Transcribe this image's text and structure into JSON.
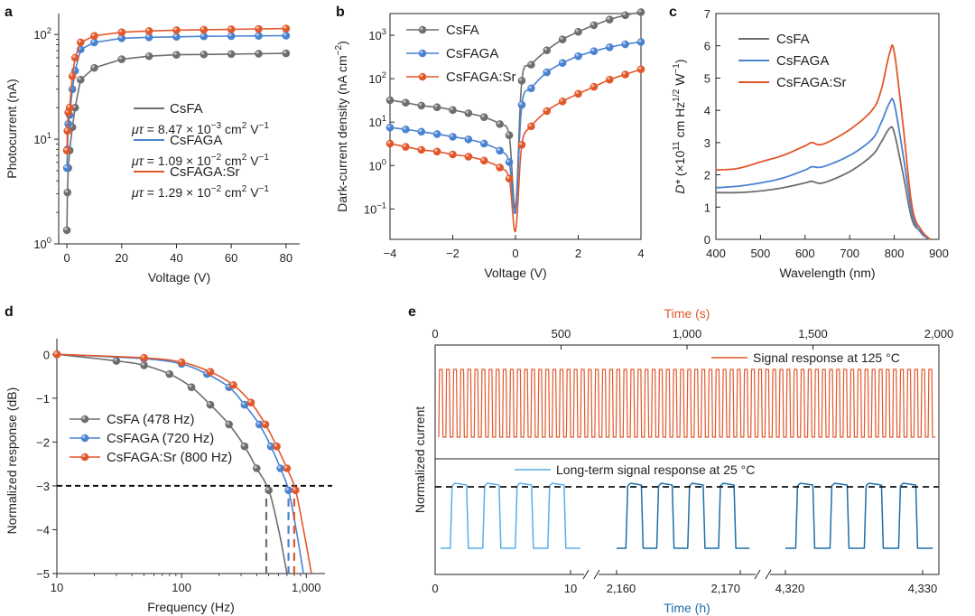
{
  "colors": {
    "csfa": "#6e6e6e",
    "csfaga": "#4a82d0",
    "csfagasr": "#e2572a",
    "signal_hot": "#e2572a",
    "signal_cold_light": "#5aaee8",
    "signal_cold_dark": "#1e6fa8"
  },
  "chart_data": [
    {
      "panel": "a",
      "type": "line",
      "xlabel": "Voltage (V)",
      "ylabel": "Photocurrent (nA)",
      "xlim": [
        -3,
        85
      ],
      "ylim_log10": [
        0,
        2.2
      ],
      "xticks": [
        "0",
        "20",
        "40",
        "60",
        "80"
      ],
      "yticks": [
        {
          "base": "10",
          "exp": "0"
        },
        {
          "base": "10",
          "exp": "1"
        },
        {
          "base": "10",
          "exp": "2"
        }
      ],
      "series": [
        {
          "name": "CsFA",
          "color_key": "csfa",
          "mu_tau": "μτ = 8.47 × 10",
          "mu_exp": "−3",
          "mu_unit": " cm",
          "unit_exp1": "2",
          "unit_tail": " V",
          "unit_exp2": "−1",
          "x": [
            0,
            0.2,
            0.5,
            1,
            2,
            3,
            5,
            10,
            20,
            30,
            40,
            50,
            60,
            70,
            80
          ],
          "y": [
            1.35,
            3.1,
            5.3,
            7.8,
            13,
            20,
            37,
            48,
            58,
            62,
            64,
            64.5,
            65,
            65.5,
            66
          ]
        },
        {
          "name": "CsFAGA",
          "color_key": "csfaga",
          "mu_tau": "μτ = 1.09 × 10",
          "mu_exp": "−2",
          "mu_unit": " cm",
          "unit_exp1": "2",
          "unit_tail": " V",
          "unit_exp2": "−1",
          "x": [
            0,
            0.2,
            0.5,
            1,
            2,
            3,
            5,
            10,
            20,
            30,
            40,
            50,
            60,
            70,
            80
          ],
          "y": [
            5.3,
            8,
            14,
            17,
            30,
            45,
            72,
            84,
            92,
            94,
            95,
            96,
            96.5,
            97,
            97.5
          ]
        },
        {
          "name": "CsFAGA:Sr",
          "color_key": "csfagasr",
          "mu_tau": "μτ = 1.29 × 10",
          "mu_exp": "−2",
          "mu_unit": " cm",
          "unit_exp1": "2",
          "unit_tail": " V",
          "unit_exp2": "−1",
          "x": [
            0,
            0.2,
            0.5,
            1,
            2,
            3,
            5,
            10,
            20,
            30,
            40,
            50,
            60,
            70,
            80
          ],
          "y": [
            7.8,
            12,
            18,
            20,
            40,
            60,
            84,
            97,
            105,
            108,
            110,
            111,
            112,
            113,
            114
          ]
        }
      ]
    },
    {
      "panel": "b",
      "type": "line",
      "xlabel": "Voltage (V)",
      "ylabel": "Dark-current density (nA cm",
      "ylabel_exp": "−2",
      "ylabel_tail": ")",
      "xlim": [
        -4,
        4
      ],
      "ylim_log10": [
        -1.7,
        3.5
      ],
      "xticks": [
        "−4",
        "−2",
        "0",
        "2",
        "4"
      ],
      "yticks": [
        {
          "base": "10",
          "exp": "−1"
        },
        {
          "base": "10",
          "exp": "0"
        },
        {
          "base": "10",
          "exp": "1"
        },
        {
          "base": "10",
          "exp": "2"
        },
        {
          "base": "10",
          "exp": "3"
        }
      ],
      "series": [
        {
          "name": "CsFA",
          "color_key": "csfa",
          "x": [
            -4,
            -3.5,
            -3,
            -2.5,
            -2,
            -1.5,
            -1,
            -0.5,
            -0.2,
            0,
            0.2,
            0.5,
            1,
            1.5,
            2,
            2.5,
            3,
            3.5,
            4
          ],
          "y": [
            32,
            28,
            24,
            22,
            19,
            16,
            13,
            9,
            5,
            0.1,
            90,
            210,
            450,
            800,
            1200,
            1700,
            2300,
            2900,
            3400
          ]
        },
        {
          "name": "CsFAGA",
          "color_key": "csfaga",
          "x": [
            -4,
            -3.5,
            -3,
            -2.5,
            -2,
            -1.5,
            -1,
            -0.5,
            -0.2,
            0,
            0.2,
            0.5,
            1,
            1.5,
            2,
            2.5,
            3,
            3.5,
            4
          ],
          "y": [
            7.5,
            6.8,
            6,
            5.3,
            4.6,
            4,
            3.2,
            2.2,
            1.2,
            0.08,
            25,
            60,
            140,
            230,
            330,
            430,
            530,
            620,
            700
          ]
        },
        {
          "name": "CsFAGA:Sr",
          "color_key": "csfagasr",
          "x": [
            -4,
            -3.5,
            -3,
            -2.5,
            -2,
            -1.5,
            -1,
            -0.5,
            -0.2,
            0,
            0.2,
            0.5,
            1,
            1.5,
            2,
            2.5,
            3,
            3.5,
            4
          ],
          "y": [
            3.2,
            2.7,
            2.3,
            2.1,
            1.8,
            1.6,
            1.3,
            0.9,
            0.5,
            0.03,
            3,
            8,
            18,
            30,
            45,
            65,
            95,
            125,
            165
          ]
        }
      ]
    },
    {
      "panel": "c",
      "type": "line",
      "xlabel": "Wavelength (nm)",
      "ylabel_pre": "D*",
      "ylabel": " (×10",
      "ylabel_exp": "11",
      "ylabel_mid": " cm Hz",
      "ylabel_exp2": "1/2",
      "ylabel_mid2": " W",
      "ylabel_exp3": "−1",
      "ylabel_tail": ")",
      "xlim": [
        400,
        900
      ],
      "ylim": [
        0,
        7
      ],
      "xticks": [
        "400",
        "500",
        "600",
        "700",
        "800",
        "900"
      ],
      "yticks": [
        "0",
        "1",
        "2",
        "3",
        "4",
        "5",
        "6",
        "7"
      ],
      "series": [
        {
          "name": "CsFA",
          "color_key": "csfa",
          "x": [
            400,
            450,
            500,
            550,
            600,
            615,
            640,
            700,
            750,
            770,
            790,
            800,
            820,
            840,
            860,
            880
          ],
          "y": [
            1.45,
            1.45,
            1.5,
            1.6,
            1.75,
            1.8,
            1.75,
            2.1,
            2.6,
            3.0,
            3.45,
            3.3,
            2.0,
            0.6,
            0.25,
            0.0
          ]
        },
        {
          "name": "CsFAGA",
          "color_key": "csfaga",
          "x": [
            400,
            450,
            500,
            550,
            600,
            615,
            640,
            700,
            750,
            770,
            790,
            800,
            820,
            840,
            860,
            880
          ],
          "y": [
            1.6,
            1.65,
            1.75,
            1.9,
            2.15,
            2.25,
            2.25,
            2.6,
            3.1,
            3.6,
            4.25,
            4.2,
            2.6,
            0.8,
            0.2,
            0.0
          ]
        },
        {
          "name": "CsFAGA:Sr",
          "color_key": "csfagasr",
          "x": [
            400,
            450,
            500,
            550,
            600,
            615,
            640,
            700,
            750,
            770,
            790,
            800,
            820,
            840,
            860,
            880
          ],
          "y": [
            2.15,
            2.2,
            2.4,
            2.6,
            2.9,
            3.0,
            2.95,
            3.4,
            4.0,
            4.6,
            5.8,
            5.8,
            3.5,
            1.0,
            0.3,
            0.0
          ]
        }
      ]
    },
    {
      "panel": "d",
      "type": "line",
      "xlabel": "Frequency (Hz)",
      "ylabel": "Normalized response (dB)",
      "xlim_log10": [
        1,
        3.15
      ],
      "ylim": [
        -5,
        0.15
      ],
      "xticks": [
        "10",
        "100",
        "1,000"
      ],
      "yticks": [
        "−5",
        "−4",
        "−3",
        "−2",
        "−1",
        "0"
      ],
      "threshold": -3,
      "series": [
        {
          "name": "CsFA",
          "legend": "CsFA (478 Hz)",
          "color_key": "csfa",
          "cutoff": 478,
          "x": [
            10,
            30,
            50,
            80,
            120,
            170,
            240,
            320,
            400,
            500,
            600,
            700
          ],
          "y": [
            0,
            -0.15,
            -0.25,
            -0.45,
            -0.75,
            -1.15,
            -1.6,
            -2.1,
            -2.6,
            -3.1,
            -4,
            -5
          ]
        },
        {
          "name": "CsFAGA",
          "legend": "CsFAGA (720 Hz)",
          "color_key": "csfaga",
          "cutoff": 720,
          "x": [
            10,
            50,
            100,
            160,
            240,
            320,
            420,
            520,
            620,
            720,
            830,
            950
          ],
          "y": [
            0,
            -0.1,
            -0.22,
            -0.45,
            -0.75,
            -1.15,
            -1.6,
            -2.1,
            -2.6,
            -3.1,
            -4,
            -5
          ]
        },
        {
          "name": "CsFAGA:Sr",
          "legend": "CsFAGA:Sr (800 Hz)",
          "color_key": "csfagasr",
          "cutoff": 800,
          "x": [
            10,
            50,
            100,
            170,
            260,
            360,
            470,
            580,
            700,
            820,
            950,
            1100
          ],
          "y": [
            0,
            -0.08,
            -0.18,
            -0.4,
            -0.7,
            -1.1,
            -1.6,
            -2.1,
            -2.6,
            -3.1,
            -4,
            -5
          ]
        }
      ]
    },
    {
      "panel": "e",
      "type": "line",
      "top_axis_label": "Time (s)",
      "bottom_axis_label": "Time (h)",
      "ylabel": "Normalized current",
      "top_xlim": [
        0,
        2000
      ],
      "top_xticks": [
        "0",
        "500",
        "1,000",
        "1,500",
        "2,000"
      ],
      "bottom_ticks": [
        "0",
        "10",
        "2,160",
        "2,170",
        "4,320",
        "4,330"
      ],
      "hot_legend": "Signal response at 125 °C",
      "cold_legend": "Long-term signal response at 25 °C",
      "hot_cycles": 70,
      "cold_pulses_per_block": 4,
      "cold_blocks": 3
    }
  ],
  "panel_labels": [
    "a",
    "b",
    "c",
    "d",
    "e"
  ]
}
